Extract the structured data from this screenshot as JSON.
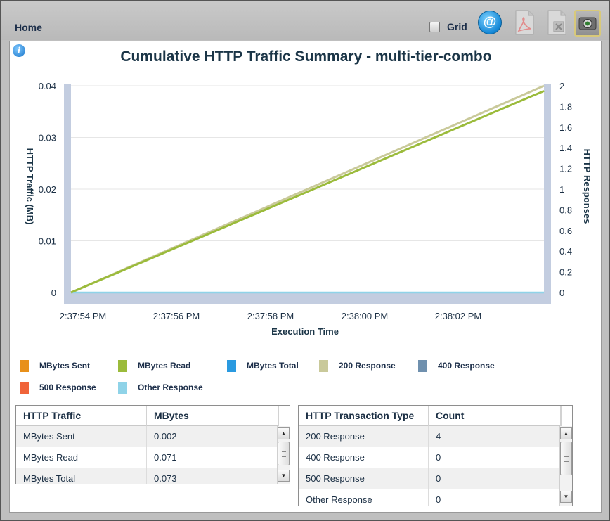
{
  "toolbar": {
    "home_label": "Home",
    "grid_label": "Grid",
    "email_symbol": "@",
    "icons": [
      "info-icon",
      "email-icon",
      "pdf-export-icon",
      "excel-export-icon",
      "snapshot-icon"
    ]
  },
  "chart": {
    "title": "Cumulative HTTP Traffic Summary - multi-tier-combo",
    "y_left_label": "HTTP Traffic (MB)",
    "y_right_label": "HTTP Responses",
    "x_label": "Execution Time",
    "y_left_ticks": [
      "0.04",
      "0.03",
      "0.02",
      "0.01",
      "0"
    ],
    "y_right_ticks": [
      "2",
      "1.8",
      "1.6",
      "1.4",
      "1.2",
      "1",
      "0.8",
      "0.6",
      "0.4",
      "0.2",
      "0"
    ],
    "x_ticks": [
      "2:37:54 PM",
      "2:37:56 PM",
      "2:37:58 PM",
      "2:38:00 PM",
      "2:38:02 PM"
    ]
  },
  "chart_data": {
    "type": "line",
    "title": "Cumulative HTTP Traffic Summary - multi-tier-combo",
    "xlabel": "Execution Time",
    "ylabel": "HTTP Traffic (MB)",
    "y2label": "HTTP Responses",
    "x": [
      "2:37:54 PM",
      "2:38:03.8 PM"
    ],
    "ylim": [
      0,
      0.04
    ],
    "y2lim": [
      0,
      2
    ],
    "grid": true,
    "legend_position": "bottom",
    "series": [
      {
        "name": "MBytes Sent",
        "axis": "left",
        "color": "#e8901a",
        "values": [
          0,
          0.0
        ],
        "visible": false
      },
      {
        "name": "MBytes Read",
        "axis": "left",
        "color": "#9bbb3b",
        "values": [
          0,
          0.039
        ]
      },
      {
        "name": "MBytes Total",
        "axis": "left",
        "color": "#2a9ae0",
        "values": [
          0,
          0.0
        ],
        "visible": false
      },
      {
        "name": "200 Response",
        "axis": "right",
        "color": "#c9c99a",
        "values": [
          0,
          2
        ]
      },
      {
        "name": "400 Response",
        "axis": "right",
        "color": "#6f90ae",
        "values": [
          0,
          0
        ],
        "visible": false
      },
      {
        "name": "500 Response",
        "axis": "right",
        "color": "#f0643a",
        "values": [
          0,
          0
        ],
        "visible": false
      },
      {
        "name": "Other Response",
        "axis": "right",
        "color": "#8fd3e8",
        "values": [
          0,
          0
        ]
      }
    ]
  },
  "legend": [
    {
      "label": "MBytes Sent",
      "color": "#e8901a"
    },
    {
      "label": "MBytes Read",
      "color": "#9bbb3b"
    },
    {
      "label": "MBytes Total",
      "color": "#2a9ae0"
    },
    {
      "label": "200 Response",
      "color": "#c9c99a"
    },
    {
      "label": "400 Response",
      "color": "#6f90ae"
    },
    {
      "label": "500 Response",
      "color": "#f0643a"
    },
    {
      "label": "Other Response",
      "color": "#8fd3e8"
    }
  ],
  "traffic_table": {
    "headers": [
      "HTTP Traffic",
      "MBytes"
    ],
    "rows": [
      [
        "MBytes Sent",
        "0.002"
      ],
      [
        "MBytes Read",
        "0.071"
      ],
      [
        "MBytes Total",
        "0.073"
      ]
    ]
  },
  "transaction_table": {
    "headers": [
      "HTTP Transaction Type",
      "Count"
    ],
    "rows": [
      [
        "200 Response",
        "4"
      ],
      [
        "400 Response",
        "0"
      ],
      [
        "500 Response",
        "0"
      ],
      [
        "Other Response",
        "0"
      ]
    ]
  },
  "colors": {
    "axis_bar": "#c3cde0",
    "title": "#1b3547",
    "gridline": "#e6e6e6"
  }
}
